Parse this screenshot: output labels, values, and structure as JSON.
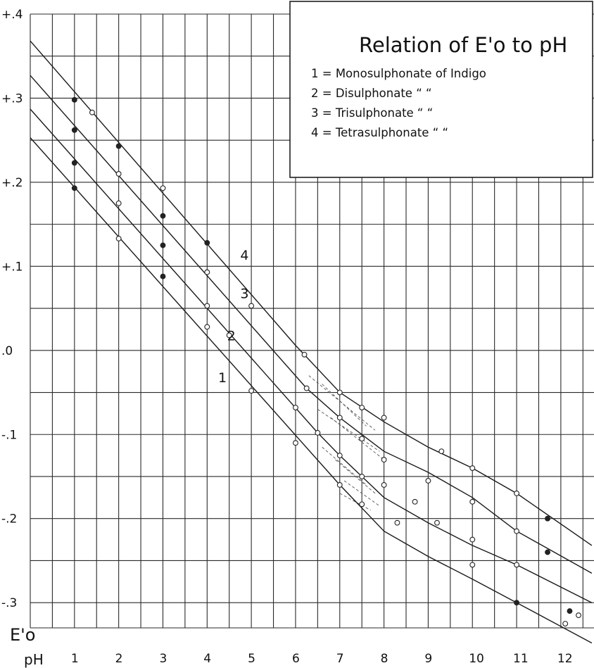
{
  "chart_data": {
    "type": "line",
    "title": "Relation of E'o to pH",
    "xlabel": "pH",
    "ylabel": "E'o",
    "xlim": [
      0,
      12.75
    ],
    "ylim": [
      -0.33,
      0.4
    ],
    "x_ticks": [
      {
        "value": 1,
        "label": "1"
      },
      {
        "value": 2,
        "label": "2"
      },
      {
        "value": 3,
        "label": "3"
      },
      {
        "value": 4,
        "label": "4"
      },
      {
        "value": 5,
        "label": "5"
      },
      {
        "value": 6,
        "label": "6"
      },
      {
        "value": 7,
        "label": "7"
      },
      {
        "value": 8,
        "label": "8"
      },
      {
        "value": 9,
        "label": "9"
      },
      {
        "value": 10,
        "label": "10"
      },
      {
        "value": 11,
        "label": "11"
      },
      {
        "value": 12,
        "label": "12"
      }
    ],
    "y_ticks": [
      {
        "value": 0.4,
        "label": "+.4"
      },
      {
        "value": 0.3,
        "label": "+.3"
      },
      {
        "value": 0.2,
        "label": "+.2"
      },
      {
        "value": 0.1,
        "label": "+.1"
      },
      {
        "value": 0.0,
        "label": ".0"
      },
      {
        "value": -0.1,
        "label": "-.1"
      },
      {
        "value": -0.2,
        "label": "-.2"
      },
      {
        "value": -0.3,
        "label": "-.3"
      }
    ],
    "grid": true,
    "legend_position": "top-right",
    "legend_entries": [
      {
        "number": "1",
        "name": "Monosulphonate of Indigo"
      },
      {
        "number": "2",
        "name": "Disulphonate “ “"
      },
      {
        "number": "3",
        "name": "Trisulphonate “ “"
      },
      {
        "number": "4",
        "name": "Tetrasulphonate “ “"
      }
    ],
    "series": [
      {
        "name": "1",
        "line": [
          [
            0,
            0.253
          ],
          [
            7,
            -0.16
          ],
          [
            8,
            -0.215
          ],
          [
            9,
            -0.245
          ],
          [
            10,
            -0.272
          ],
          [
            11,
            -0.3
          ],
          [
            12.7,
            -0.348
          ]
        ],
        "points": [
          [
            1,
            0.193
          ],
          [
            2,
            0.133
          ],
          [
            3,
            0.088
          ],
          [
            4,
            0.028
          ],
          [
            5,
            -0.048
          ],
          [
            6,
            -0.11
          ],
          [
            7,
            -0.16
          ],
          [
            7.5,
            -0.183
          ],
          [
            8.3,
            -0.205
          ],
          [
            9.2,
            -0.205
          ],
          [
            10,
            -0.255
          ],
          [
            11,
            -0.3
          ],
          [
            12.1,
            -0.325
          ]
        ]
      },
      {
        "name": "2",
        "line": [
          [
            0,
            0.287
          ],
          [
            6.5,
            -0.098
          ],
          [
            7,
            -0.125
          ],
          [
            8,
            -0.175
          ],
          [
            9,
            -0.205
          ],
          [
            10,
            -0.232
          ],
          [
            11,
            -0.255
          ],
          [
            12.7,
            -0.3
          ]
        ],
        "points": [
          [
            1,
            0.223
          ],
          [
            2,
            0.175
          ],
          [
            3,
            0.125
          ],
          [
            4,
            0.053
          ],
          [
            4.5,
            0.018
          ],
          [
            6,
            -0.068
          ],
          [
            6.5,
            -0.098
          ],
          [
            7,
            -0.125
          ],
          [
            7.5,
            -0.15
          ],
          [
            8,
            -0.16
          ],
          [
            8.7,
            -0.18
          ],
          [
            10,
            -0.225
          ],
          [
            11,
            -0.255
          ],
          [
            12.2,
            -0.31
          ]
        ]
      },
      {
        "name": "3",
        "line": [
          [
            0,
            0.327
          ],
          [
            6.25,
            -0.045
          ],
          [
            7,
            -0.08
          ],
          [
            8,
            -0.12
          ],
          [
            9,
            -0.145
          ],
          [
            10,
            -0.175
          ],
          [
            11,
            -0.215
          ],
          [
            12.7,
            -0.265
          ]
        ],
        "points": [
          [
            1,
            0.262
          ],
          [
            2,
            0.21
          ],
          [
            3,
            0.16
          ],
          [
            4,
            0.093
          ],
          [
            6.25,
            -0.045
          ],
          [
            7,
            -0.08
          ],
          [
            7.5,
            -0.105
          ],
          [
            8,
            -0.13
          ],
          [
            9,
            -0.155
          ],
          [
            10,
            -0.18
          ],
          [
            11,
            -0.215
          ],
          [
            11.7,
            -0.2
          ],
          [
            12.4,
            -0.315
          ]
        ]
      },
      {
        "name": "4",
        "line": [
          [
            0,
            0.368
          ],
          [
            6,
            0.006
          ],
          [
            7,
            -0.05
          ],
          [
            8,
            -0.085
          ],
          [
            9,
            -0.115
          ],
          [
            10,
            -0.14
          ],
          [
            11,
            -0.17
          ],
          [
            12.7,
            -0.232
          ]
        ],
        "points": [
          [
            1,
            0.298
          ],
          [
            1.4,
            0.283
          ],
          [
            2,
            0.243
          ],
          [
            3,
            0.193
          ],
          [
            4,
            0.128
          ],
          [
            5,
            0.053
          ],
          [
            6.2,
            -0.005
          ],
          [
            7,
            -0.05
          ],
          [
            7.5,
            -0.068
          ],
          [
            8,
            -0.08
          ],
          [
            9.3,
            -0.12
          ],
          [
            10,
            -0.14
          ],
          [
            11,
            -0.17
          ],
          [
            11.7,
            -0.24
          ]
        ]
      }
    ],
    "curve_labels": [
      {
        "text": "4",
        "x": 4.75,
        "y": 0.108
      },
      {
        "text": "3",
        "x": 4.75,
        "y": 0.062
      },
      {
        "text": "2",
        "x": 4.45,
        "y": 0.012
      },
      {
        "text": "1",
        "x": 4.25,
        "y": -0.038
      }
    ]
  }
}
